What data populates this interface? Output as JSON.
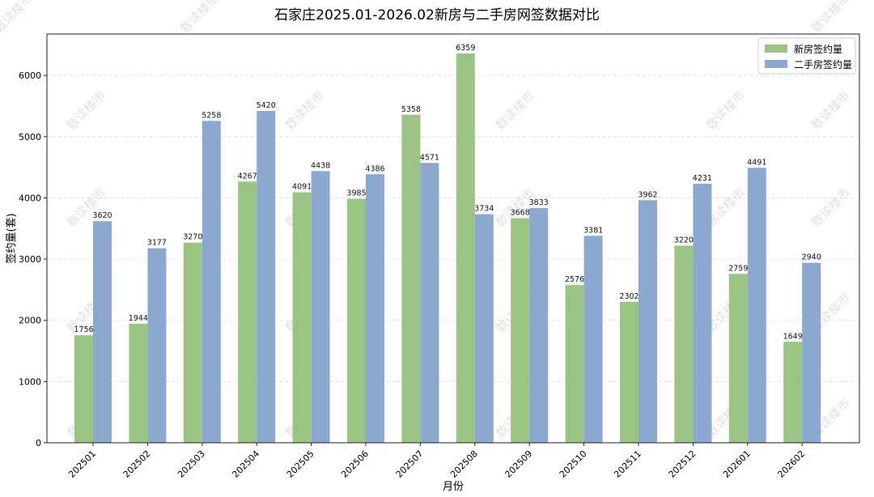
{
  "chart_data": {
    "type": "bar",
    "title": "石家庄2025.01-2026.02新房与二手房网签数据对比",
    "xlabel": "月份",
    "ylabel": "签约量(套)",
    "categories": [
      "202501",
      "202502",
      "202503",
      "202504",
      "202505",
      "202506",
      "202507",
      "202508",
      "202509",
      "202510",
      "202511",
      "202512",
      "202601",
      "202602"
    ],
    "series": [
      {
        "name": "新房签约量",
        "color": "#9bc383",
        "values": [
          1756,
          1944,
          3270,
          4267,
          4091,
          3985,
          5358,
          6359,
          3668,
          2576,
          2302,
          3220,
          2759,
          1649
        ]
      },
      {
        "name": "二手房签约量",
        "color": "#8ca8cf",
        "values": [
          3620,
          3177,
          5258,
          5420,
          4438,
          4386,
          4571,
          3734,
          3833,
          3381,
          3962,
          4231,
          4491,
          2940
        ]
      }
    ],
    "ylim": [
      0,
      6677
    ],
    "yticks": [
      0,
      1000,
      2000,
      3000,
      4000,
      5000,
      6000
    ],
    "grid": "horizontal dashed",
    "legend_position": "top-right",
    "watermark": "数读楼市"
  }
}
